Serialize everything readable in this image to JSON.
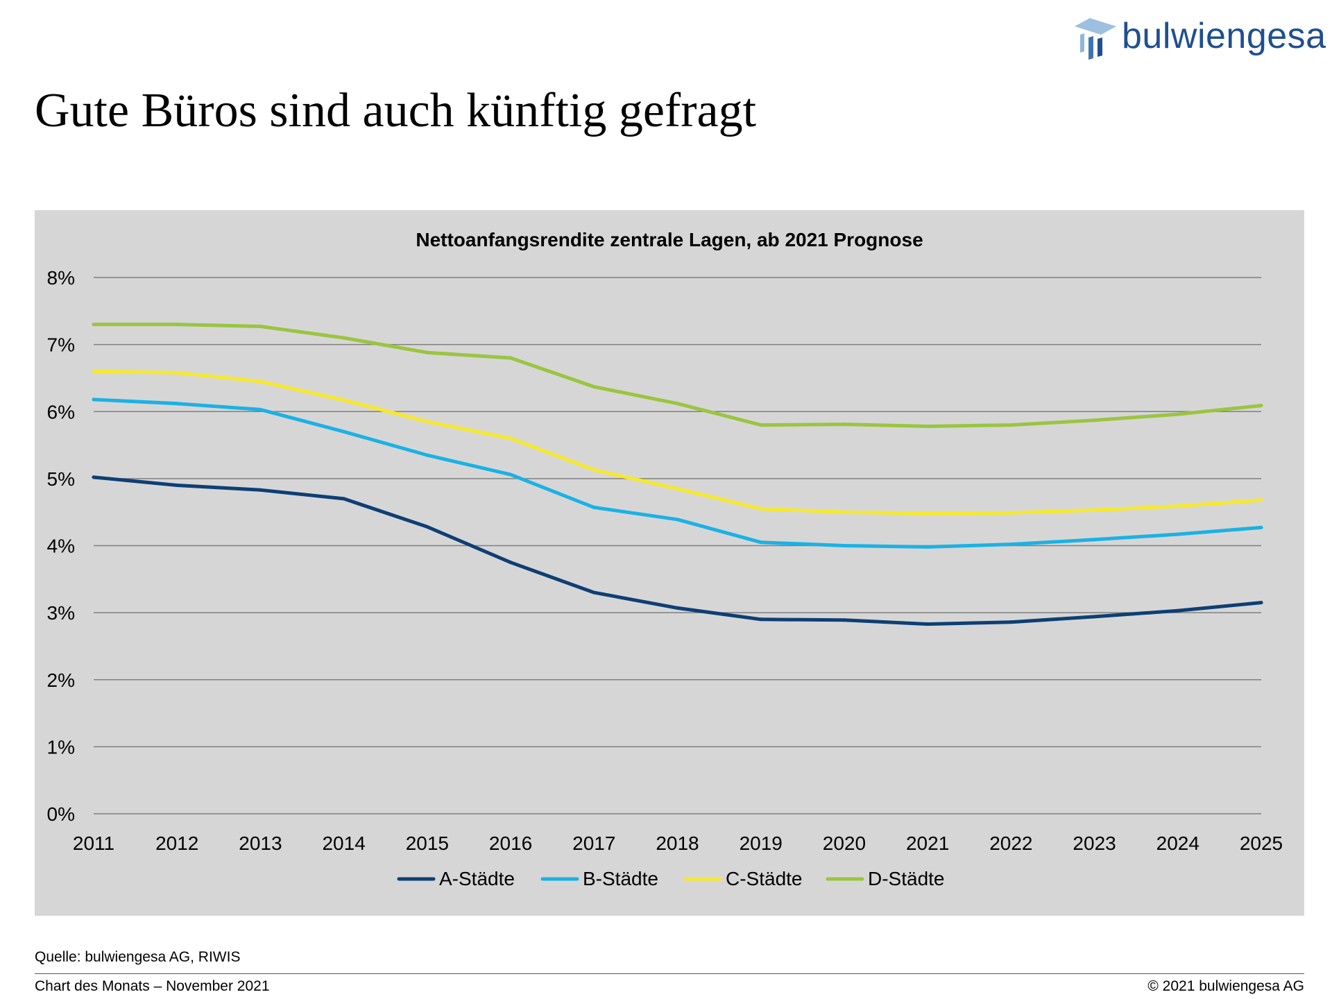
{
  "brand": {
    "name": "bulwiengesa",
    "colors": {
      "logo_light": "#8fb6d9",
      "logo_dark": "#1f4f8f"
    }
  },
  "page": {
    "title": "Gute Büros sind auch künftig gefragt",
    "source": "Quelle: bulwiengesa AG, RIWIS",
    "footer_left": "Chart des Monats – November 2021",
    "footer_right": "© 2021 bulwiengesa AG"
  },
  "chart_data": {
    "type": "line",
    "title": "Nettoanfangsrendite zentrale Lagen, ab 2021 Prognose",
    "xlabel": "",
    "ylabel": "",
    "x": [
      "2011",
      "2012",
      "2013",
      "2014",
      "2015",
      "2016",
      "2017",
      "2018",
      "2019",
      "2020",
      "2021",
      "2022",
      "2023",
      "2024",
      "2025"
    ],
    "ylim": [
      0,
      8
    ],
    "yticks": [
      0,
      1,
      2,
      3,
      4,
      5,
      6,
      7,
      8
    ],
    "ytick_labels": [
      "0%",
      "1%",
      "2%",
      "3%",
      "4%",
      "5%",
      "6%",
      "7%",
      "8%"
    ],
    "grid": true,
    "legend_position": "bottom",
    "background": "#d7d6d7",
    "series": [
      {
        "name": "A-Städte",
        "color": "#0d3f73",
        "values": [
          5.02,
          4.9,
          4.83,
          4.7,
          4.28,
          3.75,
          3.3,
          3.07,
          2.9,
          2.89,
          2.83,
          2.86,
          2.94,
          3.03,
          3.15
        ]
      },
      {
        "name": "B-Städte",
        "color": "#1ab2e4",
        "values": [
          6.18,
          6.12,
          6.03,
          5.7,
          5.35,
          5.06,
          4.57,
          4.39,
          4.05,
          4.0,
          3.98,
          4.02,
          4.09,
          4.17,
          4.27
        ]
      },
      {
        "name": "C-Städte",
        "color": "#f5e92c",
        "values": [
          6.6,
          6.58,
          6.45,
          6.17,
          5.85,
          5.6,
          5.13,
          4.85,
          4.55,
          4.5,
          4.48,
          4.49,
          4.53,
          4.59,
          4.68
        ]
      },
      {
        "name": "D-Städte",
        "color": "#99c540",
        "values": [
          7.3,
          7.3,
          7.27,
          7.1,
          6.88,
          6.8,
          6.37,
          6.12,
          5.8,
          5.81,
          5.78,
          5.8,
          5.87,
          5.96,
          6.09
        ]
      }
    ]
  }
}
